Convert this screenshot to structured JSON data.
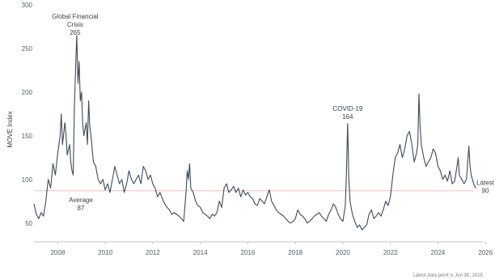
{
  "chart_data": {
    "type": "line",
    "ylabel": "MOVE Index",
    "ylim": [
      35,
      300
    ],
    "xlim": [
      2007.0,
      2026.4
    ],
    "yticks": [
      50,
      100,
      150,
      200,
      250,
      300
    ],
    "xticks": [
      2008,
      2010,
      2012,
      2014,
      2016,
      2018,
      2020,
      2022,
      2024,
      2026
    ],
    "grid": false,
    "series": [
      {
        "color": "#3d4a57",
        "points": [
          [
            2007.0,
            72
          ],
          [
            2007.1,
            60
          ],
          [
            2007.2,
            55
          ],
          [
            2007.3,
            62
          ],
          [
            2007.4,
            58
          ],
          [
            2007.5,
            75
          ],
          [
            2007.6,
            100
          ],
          [
            2007.7,
            90
          ],
          [
            2007.8,
            118
          ],
          [
            2007.9,
            105
          ],
          [
            2008.0,
            130
          ],
          [
            2008.1,
            150
          ],
          [
            2008.15,
            175
          ],
          [
            2008.2,
            140
          ],
          [
            2008.3,
            165
          ],
          [
            2008.35,
            150
          ],
          [
            2008.4,
            128
          ],
          [
            2008.5,
            140
          ],
          [
            2008.55,
            120
          ],
          [
            2008.6,
            110
          ],
          [
            2008.65,
            105
          ],
          [
            2008.7,
            180
          ],
          [
            2008.75,
            225
          ],
          [
            2008.8,
            265
          ],
          [
            2008.85,
            210
          ],
          [
            2008.9,
            235
          ],
          [
            2008.95,
            190
          ],
          [
            2009.0,
            200
          ],
          [
            2009.05,
            165
          ],
          [
            2009.1,
            150
          ],
          [
            2009.2,
            165
          ],
          [
            2009.25,
            140
          ],
          [
            2009.3,
            190
          ],
          [
            2009.35,
            160
          ],
          [
            2009.4,
            150
          ],
          [
            2009.5,
            120
          ],
          [
            2009.6,
            115
          ],
          [
            2009.7,
            100
          ],
          [
            2009.8,
            95
          ],
          [
            2009.9,
            100
          ],
          [
            2010.0,
            88
          ],
          [
            2010.1,
            95
          ],
          [
            2010.2,
            85
          ],
          [
            2010.3,
            100
          ],
          [
            2010.4,
            115
          ],
          [
            2010.5,
            105
          ],
          [
            2010.6,
            95
          ],
          [
            2010.7,
            100
          ],
          [
            2010.8,
            85
          ],
          [
            2010.9,
            95
          ],
          [
            2011.0,
            110
          ],
          [
            2011.1,
            100
          ],
          [
            2011.2,
            95
          ],
          [
            2011.3,
            100
          ],
          [
            2011.4,
            105
          ],
          [
            2011.5,
            95
          ],
          [
            2011.6,
            115
          ],
          [
            2011.7,
            110
          ],
          [
            2011.8,
            100
          ],
          [
            2011.9,
            105
          ],
          [
            2012.0,
            95
          ],
          [
            2012.1,
            90
          ],
          [
            2012.2,
            80
          ],
          [
            2012.3,
            85
          ],
          [
            2012.4,
            78
          ],
          [
            2012.5,
            72
          ],
          [
            2012.6,
            68
          ],
          [
            2012.7,
            65
          ],
          [
            2012.8,
            60
          ],
          [
            2012.9,
            62
          ],
          [
            2013.0,
            60
          ],
          [
            2013.1,
            58
          ],
          [
            2013.2,
            55
          ],
          [
            2013.3,
            52
          ],
          [
            2013.4,
            85
          ],
          [
            2013.45,
            110
          ],
          [
            2013.5,
            100
          ],
          [
            2013.55,
            118
          ],
          [
            2013.6,
            90
          ],
          [
            2013.7,
            85
          ],
          [
            2013.8,
            75
          ],
          [
            2013.9,
            70
          ],
          [
            2014.0,
            68
          ],
          [
            2014.1,
            62
          ],
          [
            2014.2,
            60
          ],
          [
            2014.3,
            58
          ],
          [
            2014.4,
            55
          ],
          [
            2014.5,
            60
          ],
          [
            2014.6,
            58
          ],
          [
            2014.7,
            62
          ],
          [
            2014.8,
            75
          ],
          [
            2014.9,
            68
          ],
          [
            2015.0,
            90
          ],
          [
            2015.1,
            95
          ],
          [
            2015.2,
            85
          ],
          [
            2015.3,
            88
          ],
          [
            2015.4,
            92
          ],
          [
            2015.5,
            85
          ],
          [
            2015.6,
            90
          ],
          [
            2015.7,
            80
          ],
          [
            2015.8,
            88
          ],
          [
            2015.9,
            82
          ],
          [
            2016.0,
            85
          ],
          [
            2016.1,
            80
          ],
          [
            2016.2,
            78
          ],
          [
            2016.3,
            72
          ],
          [
            2016.4,
            70
          ],
          [
            2016.5,
            78
          ],
          [
            2016.6,
            75
          ],
          [
            2016.7,
            72
          ],
          [
            2016.8,
            80
          ],
          [
            2016.9,
            88
          ],
          [
            2017.0,
            75
          ],
          [
            2017.1,
            70
          ],
          [
            2017.2,
            65
          ],
          [
            2017.3,
            62
          ],
          [
            2017.4,
            60
          ],
          [
            2017.5,
            58
          ],
          [
            2017.6,
            55
          ],
          [
            2017.7,
            52
          ],
          [
            2017.8,
            50
          ],
          [
            2017.9,
            52
          ],
          [
            2018.0,
            55
          ],
          [
            2018.1,
            65
          ],
          [
            2018.2,
            60
          ],
          [
            2018.3,
            58
          ],
          [
            2018.4,
            55
          ],
          [
            2018.5,
            50
          ],
          [
            2018.6,
            52
          ],
          [
            2018.7,
            55
          ],
          [
            2018.8,
            58
          ],
          [
            2018.9,
            60
          ],
          [
            2019.0,
            62
          ],
          [
            2019.1,
            58
          ],
          [
            2019.2,
            55
          ],
          [
            2019.3,
            52
          ],
          [
            2019.4,
            60
          ],
          [
            2019.5,
            65
          ],
          [
            2019.6,
            72
          ],
          [
            2019.7,
            68
          ],
          [
            2019.8,
            60
          ],
          [
            2019.9,
            55
          ],
          [
            2020.0,
            52
          ],
          [
            2020.1,
            70
          ],
          [
            2020.15,
            110
          ],
          [
            2020.2,
            164
          ],
          [
            2020.25,
            100
          ],
          [
            2020.3,
            75
          ],
          [
            2020.4,
            60
          ],
          [
            2020.5,
            52
          ],
          [
            2020.6,
            45
          ],
          [
            2020.7,
            48
          ],
          [
            2020.8,
            42
          ],
          [
            2020.9,
            45
          ],
          [
            2021.0,
            48
          ],
          [
            2021.1,
            60
          ],
          [
            2021.2,
            65
          ],
          [
            2021.3,
            55
          ],
          [
            2021.4,
            58
          ],
          [
            2021.5,
            62
          ],
          [
            2021.6,
            58
          ],
          [
            2021.7,
            65
          ],
          [
            2021.8,
            75
          ],
          [
            2021.9,
            70
          ],
          [
            2022.0,
            80
          ],
          [
            2022.1,
            105
          ],
          [
            2022.2,
            125
          ],
          [
            2022.3,
            130
          ],
          [
            2022.4,
            140
          ],
          [
            2022.5,
            125
          ],
          [
            2022.6,
            135
          ],
          [
            2022.7,
            150
          ],
          [
            2022.8,
            155
          ],
          [
            2022.9,
            140
          ],
          [
            2023.0,
            120
          ],
          [
            2023.1,
            130
          ],
          [
            2023.15,
            140
          ],
          [
            2023.2,
            198
          ],
          [
            2023.25,
            160
          ],
          [
            2023.3,
            140
          ],
          [
            2023.4,
            125
          ],
          [
            2023.5,
            115
          ],
          [
            2023.6,
            120
          ],
          [
            2023.7,
            125
          ],
          [
            2023.8,
            135
          ],
          [
            2023.9,
            130
          ],
          [
            2024.0,
            115
          ],
          [
            2024.1,
            110
          ],
          [
            2024.2,
            100
          ],
          [
            2024.3,
            105
          ],
          [
            2024.4,
            98
          ],
          [
            2024.5,
            110
          ],
          [
            2024.6,
            95
          ],
          [
            2024.7,
            98
          ],
          [
            2024.8,
            115
          ],
          [
            2024.85,
            125
          ],
          [
            2024.9,
            105
          ],
          [
            2025.0,
            100
          ],
          [
            2025.1,
            95
          ],
          [
            2025.2,
            100
          ],
          [
            2025.25,
            120
          ],
          [
            2025.3,
            138
          ],
          [
            2025.35,
            115
          ],
          [
            2025.4,
            105
          ],
          [
            2025.45,
            100
          ],
          [
            2025.5,
            95
          ],
          [
            2025.55,
            92
          ],
          [
            2025.6,
            90
          ]
        ]
      }
    ],
    "average": {
      "value": 87,
      "label": "Average",
      "value_label": "87",
      "color": "#e9a9a4"
    },
    "annotations": [
      {
        "label": "Global Financial\nCrisis",
        "value_label": "265",
        "x": 2008.8,
        "y": 265
      },
      {
        "label": "COVID-19",
        "value_label": "164",
        "x": 2020.2,
        "y": 164
      },
      {
        "label": "Latest",
        "value_label": "90",
        "x": 2025.6,
        "y": 90
      }
    ],
    "footnote": "Latest data point is Jun 30, 2025"
  }
}
